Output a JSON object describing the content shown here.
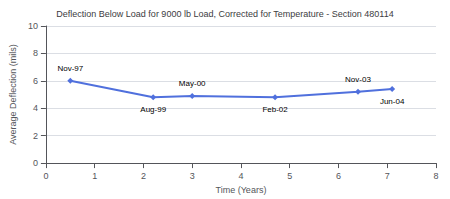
{
  "chart_data": {
    "type": "line",
    "title": "Deflection Below Load for 9000 lb Load, Corrected for Temperature - Section 480114",
    "xlabel": "Time (Years)",
    "ylabel": "Average Deflection (mils)",
    "x": [
      0.5,
      2.2,
      3.0,
      4.7,
      6.4,
      7.1
    ],
    "values": [
      6.0,
      4.8,
      4.9,
      4.8,
      5.2,
      5.4
    ],
    "annotations": [
      "Nov-97",
      "Aug-99",
      "May-00",
      "Feb-02",
      "Nov-03",
      "Jun-04"
    ],
    "xlim": [
      0,
      8
    ],
    "ylim": [
      0,
      10
    ],
    "xticks": [
      0,
      1,
      2,
      3,
      4,
      5,
      6,
      7,
      8
    ],
    "yticks": [
      0,
      2,
      4,
      6,
      8,
      10
    ],
    "marker": "diamond",
    "grid": true
  }
}
